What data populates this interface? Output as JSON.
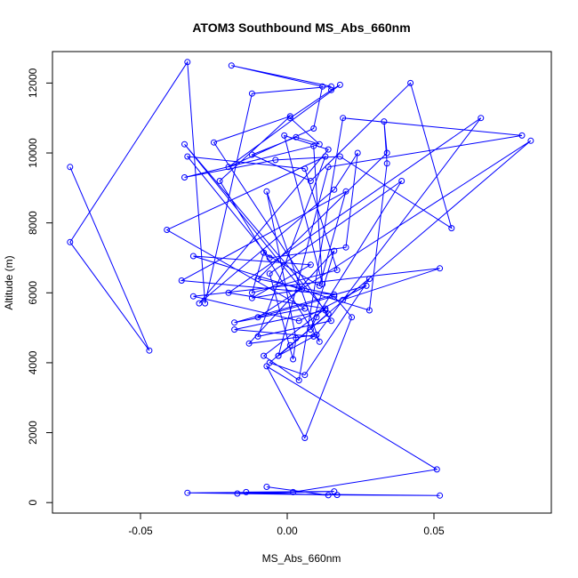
{
  "chart_data": {
    "type": "line",
    "title": "ATOM3 Southbound MS_Abs_660nm",
    "xlabel": "MS_Abs_660nm",
    "ylabel": "Altitude (m)",
    "xlim": [
      -0.08,
      0.09
    ],
    "ylim": [
      -300,
      12900
    ],
    "xticks": [
      -0.05,
      0.0,
      0.05
    ],
    "xtick_labels": [
      "-0.05",
      "0.00",
      "0.05"
    ],
    "yticks": [
      0,
      2000,
      4000,
      6000,
      8000,
      10000,
      12000
    ],
    "ytick_labels": [
      "0",
      "2000",
      "4000",
      "6000",
      "8000",
      "10000",
      "12000"
    ],
    "grid": false,
    "marker": "open-circle",
    "series_color": "#0000ff",
    "series": [
      {
        "x": [
          -0.074,
          -0.047,
          -0.074,
          -0.034,
          -0.028,
          -0.012,
          0.015,
          -0.019,
          0.012,
          0.009,
          -0.02,
          0.018,
          0.015,
          0.001,
          0.011,
          0.003,
          -0.012,
          0.008,
          0.042,
          0.056,
          0.018,
          -0.004,
          -0.035,
          0.009,
          0.012,
          -0.001,
          0.014,
          -0.03,
          0.016,
          0.024,
          0.02,
          -0.006,
          -0.034,
          0.006,
          0.017,
          -0.012,
          -0.008,
          0.011,
          0.02,
          -0.036,
          0.016,
          -0.01,
          0.034,
          0.033,
          0.034,
          0.028,
          -0.032,
          0.008,
          -0.012,
          0.005,
          -0.035,
          0.013,
          -0.018,
          0.009,
          -0.003,
          0.014,
          0.001,
          -0.006,
          0.006,
          0.028,
          0.019,
          0.052,
          -0.032,
          0.004,
          0.027,
          -0.018,
          0.006,
          -0.041,
          0.013,
          -0.01,
          0.015,
          -0.025,
          0.001,
          -0.023,
          0.011,
          -0.007,
          0.003,
          0.002,
          -0.006,
          0.039,
          0.01,
          0.008,
          0.016,
          -0.013,
          0.01,
          0.066,
          -0.02,
          0.013,
          -0.008,
          0.004,
          0.019,
          0.08,
          0.014,
          -0.003,
          0.083,
          -0.01,
          0.016,
          0.022,
          0.006,
          -0.007,
          0.051,
          0.002,
          -0.034,
          0.017,
          0.052,
          -0.017,
          0.016,
          -0.014,
          0.014,
          -0.007
        ],
        "y": [
          9600,
          4350,
          7450,
          12600,
          5700,
          11700,
          11900,
          12500,
          11900,
          10700,
          9600,
          11950,
          11800,
          11000,
          10250,
          10450,
          9950,
          9200,
          12000,
          7850,
          9900,
          9800,
          9300,
          10200,
          6250,
          10500,
          10100,
          5700,
          8950,
          10000,
          7300,
          7000,
          9900,
          9550,
          6650,
          6000,
          7150,
          6200,
          8900,
          6350,
          5950,
          6400,
          10000,
          10900,
          9700,
          5500,
          7050,
          6800,
          5850,
          6100,
          10250,
          5500,
          4950,
          4750,
          4200,
          5400,
          4500,
          4000,
          3650,
          6400,
          5800,
          6700,
          5900,
          5200,
          6200,
          5150,
          5550,
          7800,
          9900,
          4750,
          5200,
          10300,
          11050,
          9200,
          4600,
          8900,
          4700,
          4100,
          6550,
          9200,
          5300,
          4950,
          7200,
          4550,
          4800,
          11000,
          6000,
          5550,
          4200,
          3500,
          11000,
          10500,
          9600,
          4200,
          10350,
          5300,
          5900,
          5300,
          1850,
          3900,
          950,
          300,
          280,
          220,
          200,
          260,
          320,
          300,
          210,
          450
        ]
      }
    ]
  }
}
